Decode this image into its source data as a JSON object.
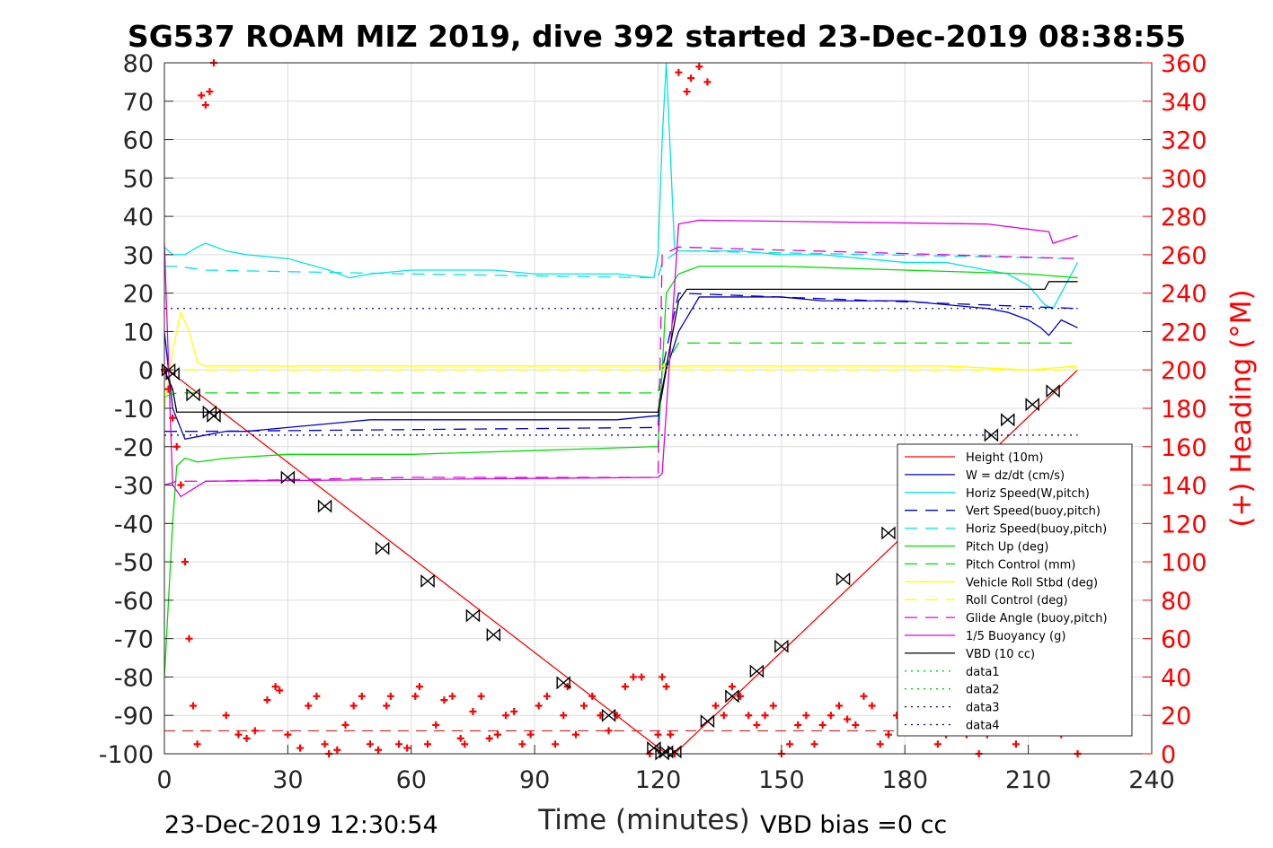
{
  "chart_data": {
    "type": "line",
    "title": "SG537 ROAM MIZ 2019, dive 392 started 23-Dec-2019 08:38:55",
    "xlabel": "Time (minutes)",
    "ylabel": "",
    "ylabel_right": "(+) Heading (°M)",
    "xlim": [
      0,
      240
    ],
    "ylim": [
      -100,
      80
    ],
    "ylim_right": [
      0,
      360
    ],
    "xticks": [
      0,
      30,
      60,
      90,
      120,
      150,
      180,
      210,
      240
    ],
    "yticks": [
      -100,
      -90,
      -80,
      -70,
      -60,
      -50,
      -40,
      -30,
      -20,
      -10,
      0,
      10,
      20,
      30,
      40,
      50,
      60,
      70,
      80
    ],
    "yticks_right": [
      0,
      20,
      40,
      60,
      80,
      100,
      120,
      140,
      160,
      180,
      200,
      220,
      240,
      260,
      280,
      300,
      320,
      340,
      360
    ],
    "grid": true,
    "legend_position": "lower-right",
    "footer_left": "23-Dec-2019 12:30:54",
    "footer_right": "VBD bias =0 cc",
    "series": [
      {
        "name": "Height (10m)",
        "color": "#ff0000",
        "style": "solid",
        "x": [
          0,
          2,
          122,
          124,
          222
        ],
        "y": [
          0,
          -1,
          -100,
          -100,
          0
        ]
      },
      {
        "name": "W = dz/dt (cm/s)",
        "color": "#0000cc",
        "style": "solid",
        "x": [
          0,
          2,
          5,
          10,
          15,
          20,
          30,
          40,
          50,
          60,
          70,
          80,
          90,
          100,
          110,
          119,
          120,
          122,
          125,
          130,
          140,
          150,
          160,
          170,
          180,
          190,
          200,
          205,
          210,
          213,
          215,
          218,
          222
        ],
        "y": [
          10,
          -10,
          -18,
          -17,
          -16,
          -16,
          -15,
          -14,
          -13,
          -13,
          -13,
          -13,
          -13,
          -13,
          -13,
          -12,
          -12,
          0,
          10,
          19,
          19,
          19,
          18,
          18,
          18,
          17,
          16,
          15,
          13,
          11,
          9,
          13,
          11
        ]
      },
      {
        "name": "Horiz Speed(W,pitch)",
        "color": "#00e5e5",
        "style": "solid",
        "x": [
          0,
          2,
          5,
          8,
          10,
          15,
          20,
          30,
          40,
          45,
          50,
          60,
          70,
          80,
          90,
          100,
          110,
          119,
          120,
          121,
          122,
          124,
          125,
          130,
          140,
          150,
          160,
          170,
          180,
          190,
          200,
          205,
          210,
          214,
          216,
          218,
          222
        ],
        "y": [
          32,
          30,
          30,
          32,
          33,
          31,
          30,
          29,
          26,
          24,
          25,
          26,
          26,
          26,
          25,
          25,
          25,
          24,
          30,
          60,
          80,
          32,
          31,
          31,
          31,
          30,
          30,
          29,
          28,
          28,
          26,
          25,
          22,
          17,
          16,
          20,
          28
        ]
      },
      {
        "name": "Vert Speed(buoy,pitch)",
        "color": "#0000cc",
        "style": "dashed",
        "x": [
          0,
          3,
          10,
          120,
          121,
          125,
          222
        ],
        "y": [
          -16,
          -16,
          -16,
          -15,
          0,
          20,
          16
        ]
      },
      {
        "name": "Horiz Speed(buoy,pitch)",
        "color": "#00e5e5",
        "style": "dashed",
        "x": [
          0,
          3,
          10,
          60,
          120,
          121,
          125,
          222
        ],
        "y": [
          27,
          27,
          26,
          25,
          24,
          28,
          31,
          29
        ]
      },
      {
        "name": "Pitch Up (deg)",
        "color": "#00dd00",
        "style": "solid",
        "x": [
          0,
          2,
          3,
          5,
          8,
          15,
          30,
          60,
          90,
          119,
          120,
          122,
          125,
          130,
          150,
          180,
          210,
          222
        ],
        "y": [
          -80,
          -40,
          -25,
          -23,
          -24,
          -23,
          -22,
          -22,
          -21,
          -20,
          -20,
          20,
          25,
          27,
          27,
          26,
          25,
          24
        ]
      },
      {
        "name": "Pitch Control (mm)",
        "color": "#00dd00",
        "style": "dashed",
        "x": [
          0,
          3,
          120,
          121,
          125,
          222
        ],
        "y": [
          -7,
          -6,
          -6,
          0,
          7,
          7
        ]
      },
      {
        "name": "Vehicle Roll Stbd (deg)",
        "color": "#ffff00",
        "style": "solid",
        "x": [
          0,
          2,
          4,
          6,
          8,
          10,
          20,
          30,
          40,
          50,
          60,
          70,
          80,
          90,
          100,
          110,
          119,
          120,
          125,
          130,
          150,
          170,
          190,
          210,
          222
        ],
        "y": [
          -10,
          5,
          15,
          10,
          2,
          1,
          1,
          1,
          1,
          1,
          1,
          1,
          1,
          1,
          1,
          1,
          1,
          1,
          1,
          1,
          1,
          1,
          1,
          0,
          1
        ]
      },
      {
        "name": "Roll Control (deg)",
        "color": "#ffff00",
        "style": "dashed",
        "x": [
          0,
          222
        ],
        "y": [
          0,
          0
        ]
      },
      {
        "name": "Glide Angle (buoy,pitch)",
        "color": "#e000e0",
        "style": "dashed",
        "x": [
          0,
          3,
          10,
          60,
          119,
          120,
          121,
          125,
          222
        ],
        "y": [
          -30,
          -29,
          -29,
          -28,
          -28,
          -27,
          30,
          32,
          29
        ]
      },
      {
        "name": "1/5 Buoyancy (g)",
        "color": "#e000e0",
        "style": "solid",
        "x": [
          0,
          2,
          4,
          10,
          120,
          121,
          125,
          130,
          200,
          215,
          216,
          222
        ],
        "y": [
          33,
          -30,
          -33,
          -29,
          -28,
          -27,
          38,
          39,
          38,
          36,
          33,
          35
        ]
      },
      {
        "name": "VBD (10 cc)",
        "color": "#000000",
        "style": "solid",
        "x": [
          0,
          2,
          3,
          120,
          121,
          125,
          127,
          214,
          215,
          222
        ],
        "y": [
          0,
          -5,
          -11,
          -11,
          -5,
          18,
          21,
          21,
          23,
          23
        ]
      },
      {
        "name": "data1",
        "color": "#00cc00",
        "style": "dotted",
        "x": [],
        "y": []
      },
      {
        "name": "data2",
        "color": "#00cc00",
        "style": "dotted",
        "x": [],
        "y": []
      },
      {
        "name": "data3",
        "color": "#000099",
        "style": "dotted",
        "x": [
          0,
          222
        ],
        "y": [
          16,
          16
        ]
      },
      {
        "name": "data4",
        "color": "#000099",
        "style": "dotted",
        "x": [
          0,
          222
        ],
        "y": [
          -17,
          -17
        ]
      }
    ],
    "apogee_threshold_line": {
      "color": "#cc0000",
      "style": "dashed",
      "x": [
        0,
        222
      ],
      "y": [
        -94,
        -94
      ]
    },
    "heading": {
      "color": "#ff0000",
      "marker": "+",
      "axis": "right",
      "x": [
        0,
        1,
        2,
        3,
        4,
        5,
        6,
        7,
        8,
        9,
        10,
        11,
        12,
        15,
        18,
        20,
        22,
        25,
        27,
        28,
        30,
        33,
        35,
        37,
        39,
        40,
        42,
        44,
        46,
        48,
        50,
        52,
        54,
        55,
        57,
        59,
        61,
        62,
        64,
        66,
        68,
        70,
        72,
        73,
        75,
        77,
        79,
        81,
        83,
        85,
        87,
        89,
        91,
        93,
        95,
        97,
        98,
        100,
        102,
        104,
        106,
        108,
        110,
        112,
        114,
        116,
        118,
        120,
        121,
        122,
        123,
        124,
        125,
        127,
        128,
        130,
        132,
        134,
        136,
        138,
        140,
        142,
        144,
        146,
        148,
        150,
        152,
        154,
        156,
        158,
        160,
        162,
        164,
        166,
        168,
        170,
        172,
        174,
        176,
        178,
        180,
        182,
        185,
        188,
        190,
        192,
        195,
        198,
        200,
        202,
        205,
        207,
        209,
        212,
        215,
        218,
        222
      ],
      "y": [
        200,
        190,
        175,
        160,
        140,
        100,
        60,
        25,
        5,
        343,
        338,
        345,
        360,
        20,
        10,
        8,
        12,
        28,
        35,
        33,
        10,
        3,
        25,
        30,
        5,
        0,
        2,
        15,
        25,
        30,
        5,
        2,
        25,
        30,
        5,
        3,
        30,
        35,
        5,
        15,
        28,
        30,
        8,
        5,
        22,
        30,
        8,
        10,
        20,
        22,
        5,
        10,
        25,
        30,
        5,
        20,
        35,
        10,
        25,
        30,
        20,
        12,
        20,
        35,
        40,
        40,
        0,
        10,
        40,
        35,
        10,
        0,
        355,
        345,
        352,
        358,
        350,
        25,
        20,
        35,
        30,
        20,
        15,
        20,
        25,
        0,
        5,
        15,
        20,
        5,
        15,
        20,
        25,
        18,
        15,
        30,
        25,
        5,
        10,
        20,
        35,
        45,
        15,
        5,
        10,
        20,
        10,
        0,
        10,
        15,
        20,
        5,
        12,
        25,
        15,
        10,
        0
      ]
    },
    "markers_black": {
      "color": "#000000",
      "x": [
        1,
        2,
        7,
        11,
        12,
        30,
        39,
        53,
        64,
        75,
        80,
        97,
        108,
        119,
        121,
        122,
        124,
        132,
        138,
        144,
        150,
        165,
        176,
        201,
        205,
        211,
        216
      ],
      "y": [
        0,
        -1,
        -6.5,
        -11,
        -12,
        -28,
        -35.5,
        -46.5,
        -55,
        -64,
        -69,
        -81.5,
        -90,
        -98.5,
        -100,
        -99.5,
        -99.5,
        -91.5,
        -85,
        -78.5,
        -72,
        -54.5,
        -42.5,
        -17,
        -13,
        -9,
        -5.5
      ]
    }
  },
  "legend": [
    "Height (10m)",
    "W = dz/dt (cm/s)",
    "Horiz Speed(W,pitch)",
    "Vert Speed(buoy,pitch)",
    "Horiz Speed(buoy,pitch)",
    "Pitch Up (deg)",
    "Pitch Control (mm)",
    "Vehicle Roll Stbd (deg)",
    "Roll Control (deg)",
    "Glide Angle (buoy,pitch)",
    "1/5 Buoyancy (g)",
    "VBD (10 cc)",
    "data1",
    "data2",
    "data3",
    "data4"
  ]
}
